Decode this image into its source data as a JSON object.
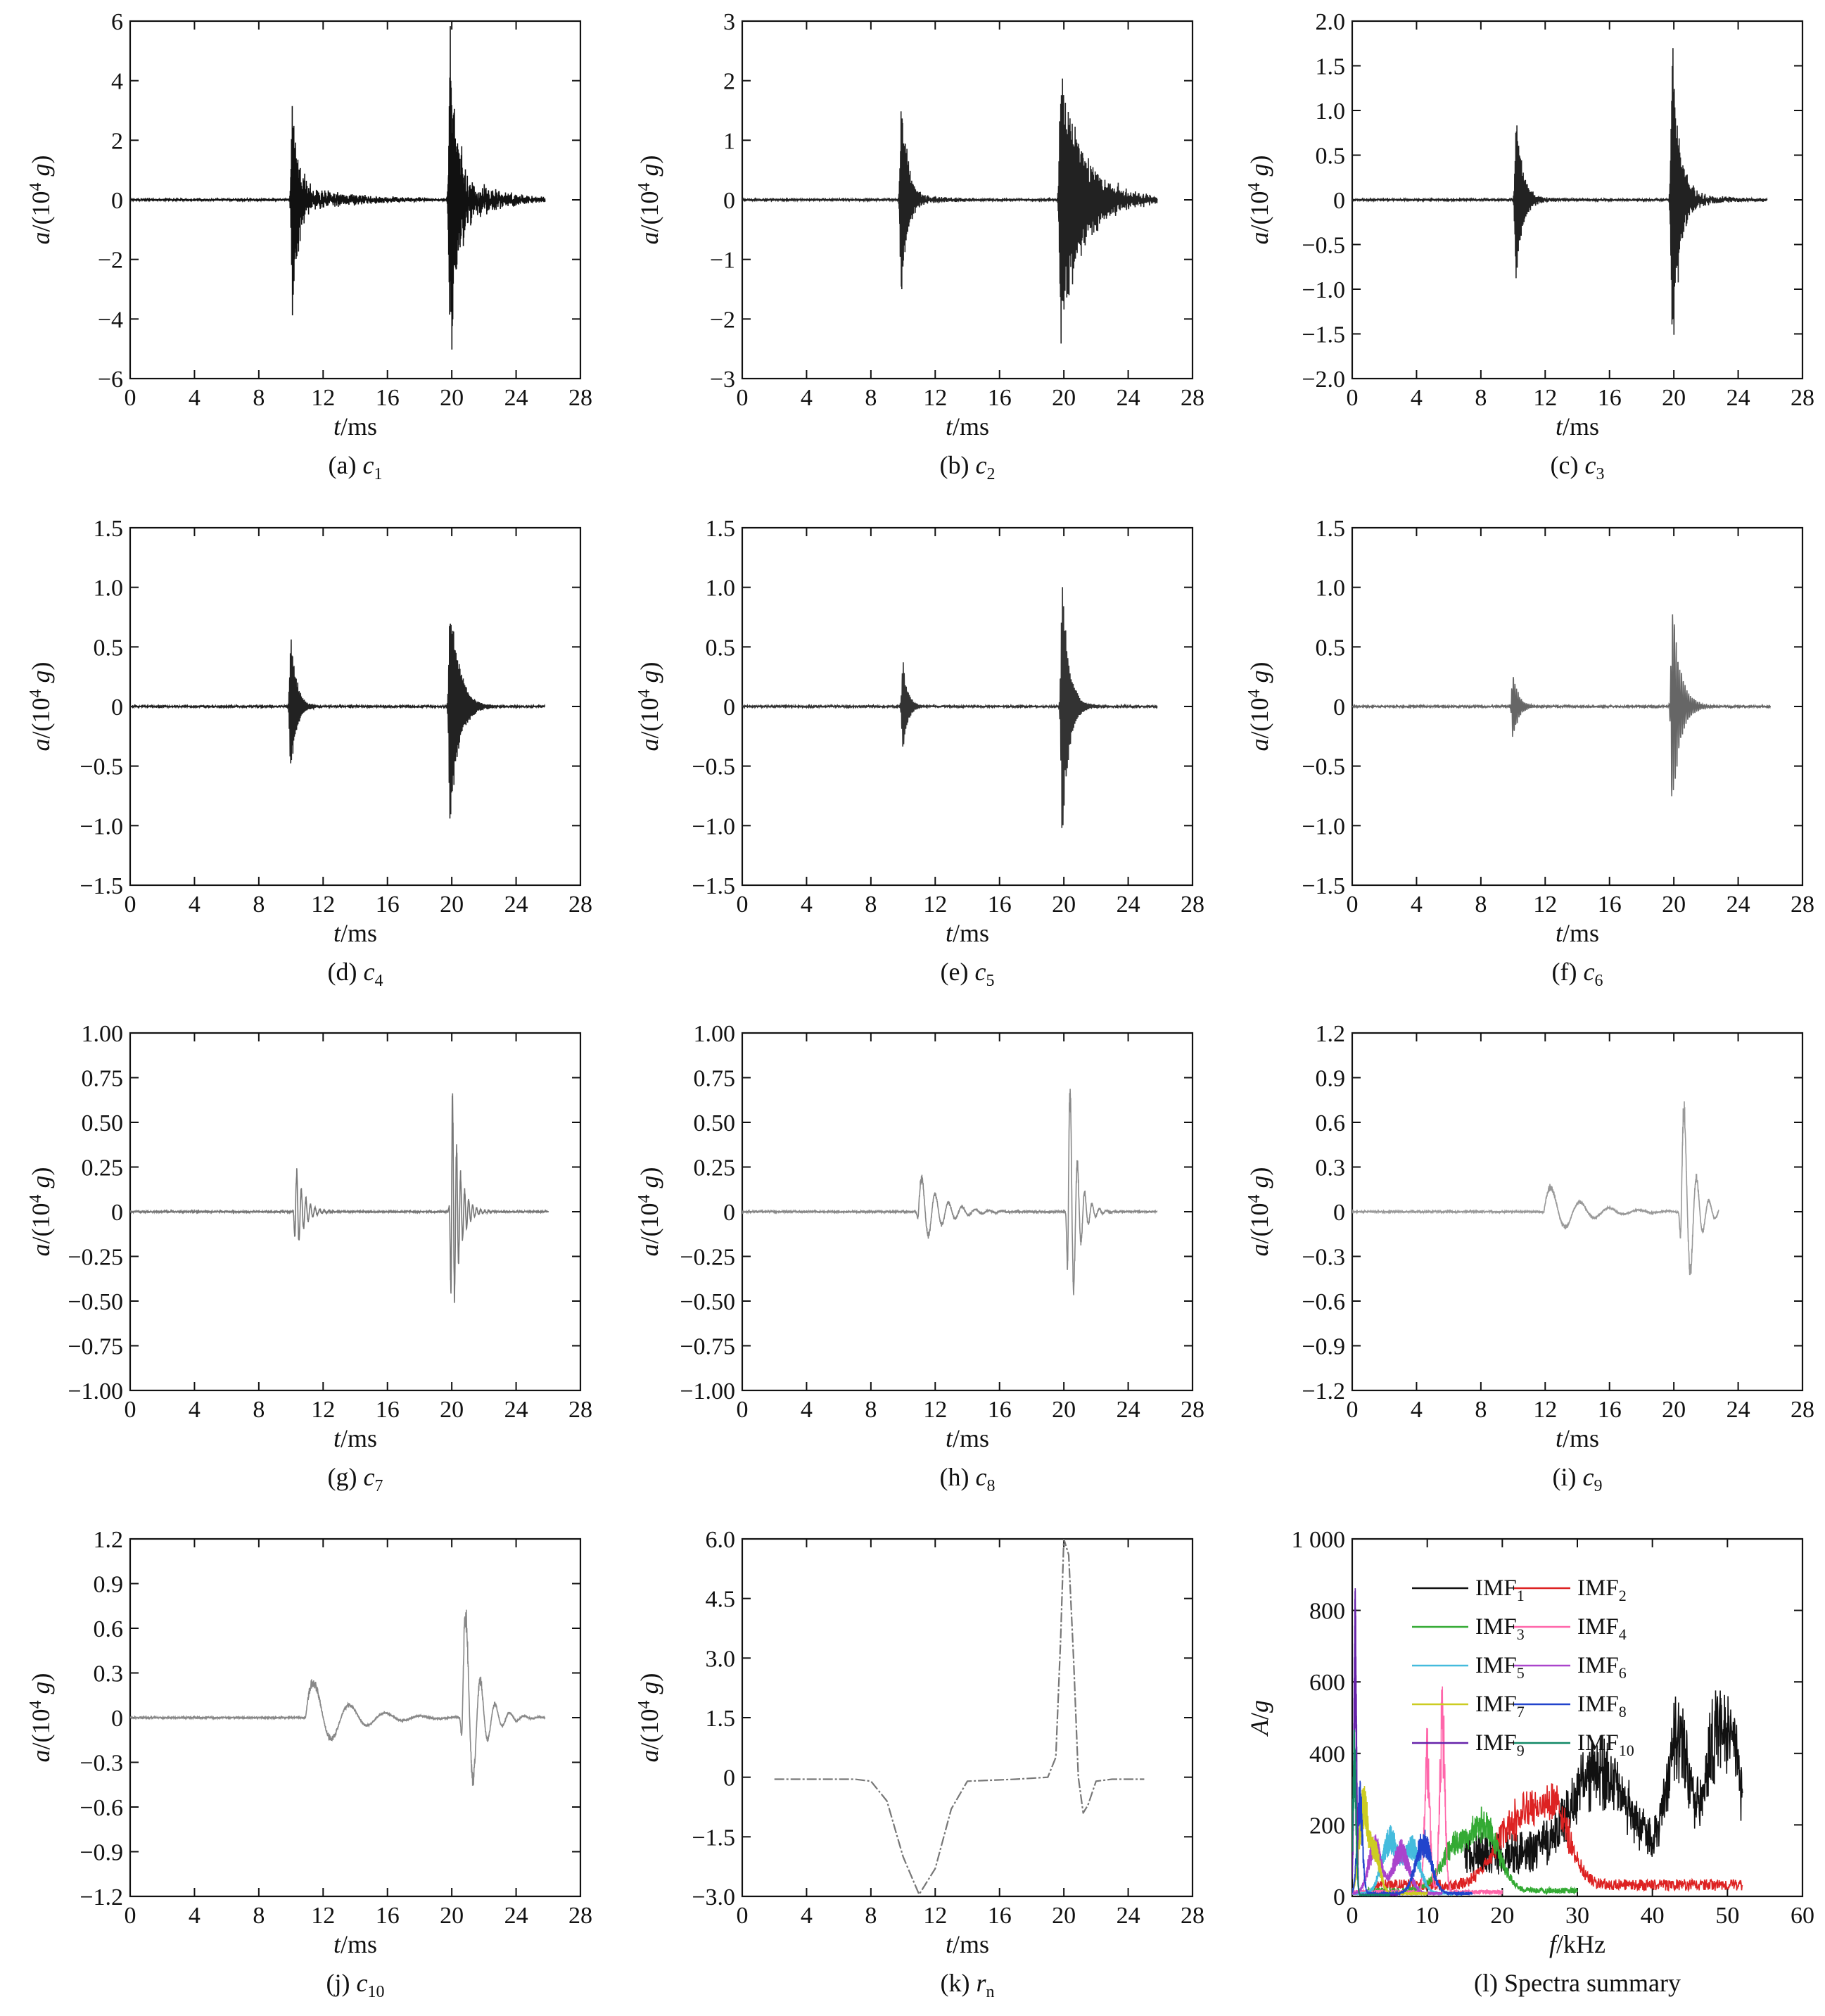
{
  "chart_data": [
    {
      "id": "a",
      "type": "line",
      "caption": {
        "prefix": "(a) ",
        "var": "c",
        "sub": "1"
      },
      "xlabel": {
        "italic": "t",
        "rest": "/ms"
      },
      "ylabel": {
        "italic": "a",
        "rest": "/(10",
        "sup": "4",
        "tail": " ",
        "italic2": "g",
        "close": ")"
      },
      "xlim": [
        0,
        28
      ],
      "ylim": [
        -6,
        6
      ],
      "xticks": [
        "0",
        "4",
        "8",
        "12",
        "16",
        "20",
        "24",
        "28"
      ],
      "yticks": [
        "−6",
        "−4",
        "−2",
        "0",
        "2",
        "4",
        "6"
      ],
      "signal": {
        "t_end": 25.8,
        "events": [
          {
            "t0": 10.1,
            "amp": 4.0,
            "freq": 40,
            "decay": 0.35,
            "tail": 0.6,
            "tailDecay": 3.5
          },
          {
            "t0": 19.9,
            "amp": 5.6,
            "freq": 35,
            "decay": 0.5,
            "tail": 0.8,
            "tailDecay": 2.5
          }
        ],
        "color": "#111111"
      }
    },
    {
      "id": "b",
      "type": "line",
      "caption": {
        "prefix": "(b) ",
        "var": "c",
        "sub": "2"
      },
      "xlabel": {
        "italic": "t",
        "rest": "/ms"
      },
      "ylabel": {
        "italic": "a",
        "rest": "/(10",
        "sup": "4",
        "tail": " ",
        "italic2": "g",
        "close": ")"
      },
      "xlim": [
        0,
        28
      ],
      "ylim": [
        -3,
        3
      ],
      "xticks": [
        "0",
        "4",
        "8",
        "12",
        "16",
        "20",
        "24",
        "28"
      ],
      "yticks": [
        "−3",
        "−2",
        "−1",
        "0",
        "1",
        "2",
        "3"
      ],
      "signal": {
        "t_end": 25.8,
        "events": [
          {
            "t0": 9.9,
            "amp": 1.8,
            "freq": 30,
            "decay": 0.4,
            "tail": 0.25,
            "tailDecay": 3.0
          },
          {
            "t0": 19.8,
            "amp": 2.2,
            "freq": 28,
            "decay": 1.4,
            "tail": 0.8,
            "tailDecay": 3.0
          }
        ],
        "color": "#222222"
      }
    },
    {
      "id": "c",
      "type": "line",
      "caption": {
        "prefix": "(c) ",
        "var": "c",
        "sub": "3"
      },
      "xlabel": {
        "italic": "t",
        "rest": "/ms"
      },
      "ylabel": {
        "italic": "a",
        "rest": "/(10",
        "sup": "4",
        "tail": " ",
        "italic2": "g",
        "close": ")"
      },
      "xlim": [
        0,
        28
      ],
      "ylim": [
        -2,
        2
      ],
      "xticks": [
        "0",
        "4",
        "8",
        "12",
        "16",
        "20",
        "24",
        "28"
      ],
      "yticks": [
        "−2.0",
        "−1.5",
        "−1.0",
        "−0.5",
        "0",
        "0.5",
        "1.0",
        "1.5",
        "2.0"
      ],
      "signal": {
        "t_end": 25.8,
        "events": [
          {
            "t0": 10.2,
            "amp": 1.0,
            "freq": 28,
            "decay": 0.4,
            "tail": 0.2,
            "tailDecay": 2.5
          },
          {
            "t0": 19.9,
            "amp": 1.9,
            "freq": 26,
            "decay": 0.45,
            "tail": 0.3,
            "tailDecay": 2.5
          }
        ],
        "color": "#222222"
      }
    },
    {
      "id": "d",
      "type": "line",
      "caption": {
        "prefix": "(d) ",
        "var": "c",
        "sub": "4"
      },
      "xlabel": {
        "italic": "t",
        "rest": "/ms"
      },
      "ylabel": {
        "italic": "a",
        "rest": "/(10",
        "sup": "4",
        "tail": " ",
        "italic2": "g",
        "close": ")"
      },
      "xlim": [
        0,
        28
      ],
      "ylim": [
        -1.5,
        1.5
      ],
      "xticks": [
        "0",
        "4",
        "8",
        "12",
        "16",
        "20",
        "24",
        "28"
      ],
      "yticks": [
        "−1.5",
        "−1.0",
        "−0.5",
        "0",
        "0.5",
        "1.0",
        "1.5"
      ],
      "signal": {
        "t_end": 25.8,
        "events": [
          {
            "t0": 10.0,
            "amp": 0.65,
            "freq": 22,
            "decay": 0.35,
            "tail": 0.05,
            "tailDecay": 3.0
          },
          {
            "t0": 19.9,
            "amp": 1.05,
            "freq": 20,
            "decay": 0.55,
            "tail": 0.06,
            "tailDecay": 3.0
          }
        ],
        "color": "#222222"
      }
    },
    {
      "id": "e",
      "type": "line",
      "caption": {
        "prefix": "(e) ",
        "var": "c",
        "sub": "5"
      },
      "xlabel": {
        "italic": "t",
        "rest": "/ms"
      },
      "ylabel": {
        "italic": "a",
        "rest": "/(10",
        "sup": "4",
        "tail": " ",
        "italic2": "g",
        "close": ")"
      },
      "xlim": [
        0,
        28
      ],
      "ylim": [
        -1.5,
        1.5
      ],
      "xticks": [
        "0",
        "4",
        "8",
        "12",
        "16",
        "20",
        "24",
        "28"
      ],
      "yticks": [
        "−1.5",
        "−1.0",
        "−0.5",
        "0",
        "0.5",
        "1.0",
        "1.5"
      ],
      "signal": {
        "t_end": 25.8,
        "events": [
          {
            "t0": 10.0,
            "amp": 0.4,
            "freq": 16,
            "decay": 0.3,
            "tail": 0.03,
            "tailDecay": 3.0
          },
          {
            "t0": 19.9,
            "amp": 1.2,
            "freq": 15,
            "decay": 0.4,
            "tail": 0.03,
            "tailDecay": 3.0
          }
        ],
        "color": "#333333"
      }
    },
    {
      "id": "f",
      "type": "line",
      "caption": {
        "prefix": "(f) ",
        "var": "c",
        "sub": "6"
      },
      "xlabel": {
        "italic": "t",
        "rest": "/ms"
      },
      "ylabel": {
        "italic": "a",
        "rest": "/(10",
        "sup": "4",
        "tail": " ",
        "italic2": "g",
        "close": ")"
      },
      "xlim": [
        0,
        28
      ],
      "ylim": [
        -1.5,
        1.5
      ],
      "xticks": [
        "0",
        "4",
        "8",
        "12",
        "16",
        "20",
        "24",
        "28"
      ],
      "yticks": [
        "−1.5",
        "−1.0",
        "−0.5",
        "0",
        "0.5",
        "1.0",
        "1.5"
      ],
      "signal": {
        "t_end": 26.0,
        "events": [
          {
            "t0": 10.0,
            "amp": 0.3,
            "freq": 10,
            "decay": 0.35,
            "tail": 0.02,
            "tailDecay": 3.0
          },
          {
            "t0": 19.9,
            "amp": 0.95,
            "freq": 9,
            "decay": 0.5,
            "tail": 0.02,
            "tailDecay": 3.0
          }
        ],
        "color": "#666666"
      }
    },
    {
      "id": "g",
      "type": "line",
      "caption": {
        "prefix": "(g) ",
        "var": "c",
        "sub": "7"
      },
      "xlabel": {
        "italic": "t",
        "rest": "/ms"
      },
      "ylabel": {
        "italic": "a",
        "rest": "/(10",
        "sup": "4",
        "tail": " ",
        "italic2": "g",
        "close": ")"
      },
      "xlim": [
        0,
        28
      ],
      "ylim": [
        -1,
        1
      ],
      "xticks": [
        "0",
        "4",
        "8",
        "12",
        "16",
        "20",
        "24",
        "28"
      ],
      "yticks": [
        "−1.00",
        "−0.75",
        "−0.50",
        "−0.25",
        "0",
        "0.25",
        "0.50",
        "0.75",
        "1.00"
      ],
      "signal": {
        "t_end": 26.0,
        "events": [
          {
            "t0": 10.3,
            "amp": 0.28,
            "freq": 3.5,
            "decay": 0.5,
            "tail": 0.0,
            "tailDecay": 3.0
          },
          {
            "t0": 20.0,
            "amp": 0.8,
            "freq": 4,
            "decay": 0.45,
            "tail": 0.0,
            "tailDecay": 3.0
          }
        ],
        "color": "#777777"
      }
    },
    {
      "id": "h",
      "type": "line",
      "caption": {
        "prefix": "(h) ",
        "var": "c",
        "sub": "8"
      },
      "xlabel": {
        "italic": "t",
        "rest": "/ms"
      },
      "ylabel": {
        "italic": "a",
        "rest": "/(10",
        "sup": "4",
        "tail": " ",
        "italic2": "g",
        "close": ")"
      },
      "xlim": [
        0,
        28
      ],
      "ylim": [
        -1,
        1
      ],
      "xticks": [
        "0",
        "4",
        "8",
        "12",
        "16",
        "20",
        "24",
        "28"
      ],
      "yticks": [
        "−1.00",
        "−0.75",
        "−0.50",
        "−0.25",
        "0",
        "0.25",
        "0.50",
        "0.75",
        "1.00"
      ],
      "signal": {
        "t_end": 25.8,
        "events": [
          {
            "t0": 11.0,
            "amp": 0.24,
            "freq": 1.2,
            "decay": 1.3,
            "tail": 0.0,
            "tailDecay": 3.0
          },
          {
            "t0": 20.3,
            "amp": 0.9,
            "freq": 2.2,
            "decay": 0.5,
            "tail": 0.0,
            "tailDecay": 3.0
          }
        ],
        "color": "#888888"
      }
    },
    {
      "id": "i",
      "type": "line",
      "caption": {
        "prefix": "(i) ",
        "var": "c",
        "sub": "9"
      },
      "xlabel": {
        "italic": "t",
        "rest": "/ms"
      },
      "ylabel": {
        "italic": "a",
        "rest": "/(10",
        "sup": "4",
        "tail": " ",
        "italic2": "g",
        "close": ")"
      },
      "xlim": [
        0,
        28
      ],
      "ylim": [
        -1.2,
        1.2
      ],
      "xticks": [
        "0",
        "4",
        "8",
        "12",
        "16",
        "20",
        "24",
        "28"
      ],
      "yticks": [
        "−1.2",
        "−0.9",
        "−0.6",
        "−0.3",
        "0",
        "0.3",
        "0.6",
        "0.9",
        "1.2"
      ],
      "signal": {
        "t_end": 22.8,
        "events": [
          {
            "t0": 12.0,
            "amp": 0.22,
            "freq": 0.55,
            "decay": 2.0,
            "tail": 0.0,
            "tailDecay": 3.0
          },
          {
            "t0": 20.5,
            "amp": 0.95,
            "freq": 1.3,
            "decay": 0.7,
            "tail": 0.0,
            "tailDecay": 3.0
          }
        ],
        "color": "#999999"
      }
    },
    {
      "id": "j",
      "type": "line",
      "caption": {
        "prefix": "(j) ",
        "var": "c",
        "sub": "10"
      },
      "xlabel": {
        "italic": "t",
        "rest": "/ms"
      },
      "ylabel": {
        "italic": "a",
        "rest": "/(10",
        "sup": "4",
        "tail": " ",
        "italic2": "g",
        "close": ")"
      },
      "xlim": [
        0,
        28
      ],
      "ylim": [
        -1.2,
        1.2
      ],
      "xticks": [
        "0",
        "4",
        "8",
        "12",
        "16",
        "20",
        "24",
        "28"
      ],
      "yticks": [
        "−1.2",
        "−0.9",
        "−0.6",
        "−0.3",
        "0",
        "0.3",
        "0.6",
        "0.9",
        "1.2"
      ],
      "signal": {
        "t_end": 25.8,
        "events": [
          {
            "t0": 11.0,
            "amp": 0.33,
            "freq": 0.45,
            "decay": 2.2,
            "tail": 0.0,
            "tailDecay": 3.0
          },
          {
            "t0": 20.7,
            "amp": 0.95,
            "freq": 1.1,
            "decay": 0.9,
            "tail": 0.0,
            "tailDecay": 3.0
          }
        ],
        "color": "#888888"
      }
    },
    {
      "id": "k",
      "type": "line",
      "caption": {
        "prefix": "(k) ",
        "var": "r",
        "sub": "n"
      },
      "xlabel": {
        "italic": "t",
        "rest": "/ms"
      },
      "ylabel": {
        "italic": "a",
        "rest": "/(10",
        "sup": "4",
        "tail": " ",
        "italic2": "g",
        "close": ")"
      },
      "xlim": [
        0,
        28
      ],
      "ylim": [
        -3,
        6
      ],
      "xticks": [
        "0",
        "4",
        "8",
        "12",
        "16",
        "20",
        "24",
        "28"
      ],
      "yticks": [
        "−3.0",
        "−1.5",
        "0",
        "1.5",
        "3.0",
        "4.5",
        "6.0"
      ],
      "trend": {
        "x": [
          2,
          7,
          8,
          9,
          10,
          11,
          12,
          13,
          14,
          17,
          19,
          19.5,
          19.8,
          20,
          20.3,
          20.6,
          20.9,
          21.2,
          21.5,
          22,
          23,
          25
        ],
        "y": [
          -0.05,
          -0.05,
          -0.1,
          -0.6,
          -2.0,
          -2.95,
          -2.3,
          -0.8,
          -0.1,
          -0.05,
          0.0,
          0.5,
          3.5,
          6.0,
          5.6,
          3.0,
          0.0,
          -0.9,
          -0.7,
          -0.1,
          -0.05,
          -0.05
        ],
        "color": "#777777"
      }
    },
    {
      "id": "l",
      "type": "line",
      "caption": {
        "prefix": "(l) Spectra summary"
      },
      "xlabel": {
        "italic": "f",
        "rest": "/kHz"
      },
      "ylabel": {
        "italic": "A",
        "rest": "/",
        "italic2": "g"
      },
      "xlim": [
        0,
        60
      ],
      "ylim": [
        0,
        1000
      ],
      "xticks": [
        "0",
        "10",
        "20",
        "30",
        "40",
        "50",
        "60"
      ],
      "yticks": [
        "0",
        "200",
        "400",
        "600",
        "800",
        "1 000"
      ],
      "legend_position": "top-center",
      "series": [
        {
          "name": "IMF",
          "sub": "1",
          "color": "#111111",
          "peaks": [
            {
              "f": 33,
              "a": 300,
              "w": 5
            },
            {
              "f": 43.5,
              "a": 430,
              "w": 2
            },
            {
              "f": 48.5,
              "a": 420,
              "w": 2
            },
            {
              "f": 51,
              "a": 300,
              "w": 1.5
            }
          ],
          "base": 150,
          "f_start": 15,
          "f_end": 52
        },
        {
          "name": "IMF",
          "sub": "2",
          "color": "#dd2222",
          "peaks": [
            {
              "f": 22,
              "a": 230,
              "w": 4
            },
            {
              "f": 27,
              "a": 240,
              "w": 3
            }
          ],
          "base": 40,
          "f_start": 3,
          "f_end": 52
        },
        {
          "name": "IMF",
          "sub": "3",
          "color": "#33aa33",
          "peaks": [
            {
              "f": 14,
              "a": 160,
              "w": 3
            },
            {
              "f": 18,
              "a": 200,
              "w": 2.5
            }
          ],
          "base": 20,
          "f_start": 2,
          "f_end": 30
        },
        {
          "name": "IMF",
          "sub": "4",
          "color": "#ff66aa",
          "peaks": [
            {
              "f": 10,
              "a": 470,
              "w": 0.5
            },
            {
              "f": 12,
              "a": 600,
              "w": 0.5
            }
          ],
          "base": 15,
          "f_start": 0,
          "f_end": 20
        },
        {
          "name": "IMF",
          "sub": "5",
          "color": "#44bbdd",
          "peaks": [
            {
              "f": 5,
              "a": 190,
              "w": 1.5
            },
            {
              "f": 8,
              "a": 160,
              "w": 1.5
            }
          ],
          "base": 10,
          "f_start": 0,
          "f_end": 15
        },
        {
          "name": "IMF",
          "sub": "6",
          "color": "#aa44cc",
          "peaks": [
            {
              "f": 3,
              "a": 170,
              "w": 1.2
            },
            {
              "f": 6.5,
              "a": 150,
              "w": 1.5
            }
          ],
          "base": 10,
          "f_start": 0,
          "f_end": 12
        },
        {
          "name": "IMF",
          "sub": "7",
          "color": "#cccc22",
          "peaks": [
            {
              "f": 1.5,
              "a": 300,
              "w": 0.8
            },
            {
              "f": 3,
              "a": 150,
              "w": 1
            }
          ],
          "base": 10,
          "f_start": 0,
          "f_end": 10
        },
        {
          "name": "IMF",
          "sub": "8",
          "color": "#2244cc",
          "peaks": [
            {
              "f": 1,
              "a": 330,
              "w": 0.5
            },
            {
              "f": 9.5,
              "a": 180,
              "w": 1.5
            }
          ],
          "base": 10,
          "f_start": 0,
          "f_end": 16
        },
        {
          "name": "IMF",
          "sub": "9",
          "color": "#6622aa",
          "peaks": [
            {
              "f": 0.4,
              "a": 860,
              "w": 0.25
            }
          ],
          "base": 5,
          "f_start": 0,
          "f_end": 6
        },
        {
          "name": "IMF",
          "sub": "10",
          "color": "#118866",
          "peaks": [
            {
              "f": 0.3,
              "a": 480,
              "w": 0.3
            }
          ],
          "base": 5,
          "f_start": 0,
          "f_end": 5
        }
      ]
    }
  ]
}
